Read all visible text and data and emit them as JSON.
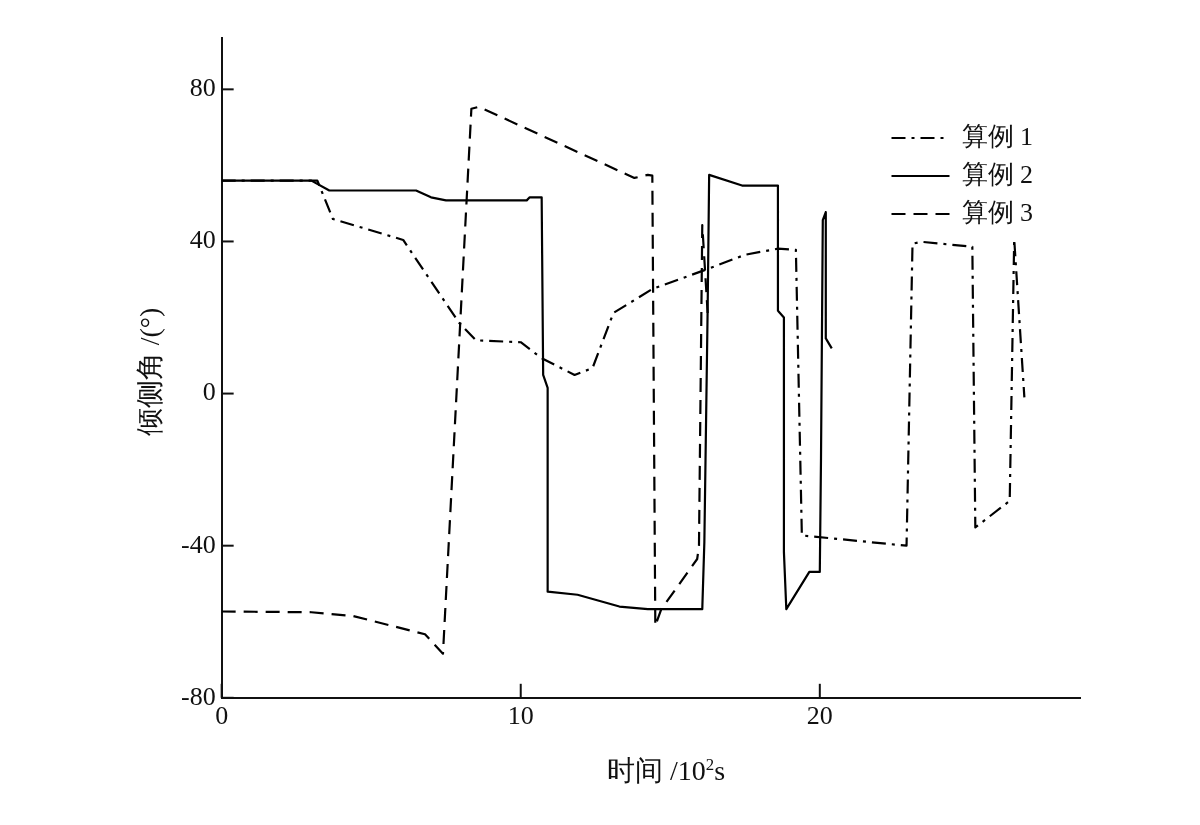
{
  "chart_data": {
    "type": "line",
    "xlabel": "时间 /10$^{2}$s",
    "ylabel": "倾侧角 /(°)",
    "xlim": [
      0,
      28.7
    ],
    "ylim": [
      -80,
      93.5
    ],
    "xticks": [
      0,
      10,
      20
    ],
    "yticks": [
      -80,
      -40,
      0,
      40,
      80
    ],
    "grid": false,
    "legend": "top right",
    "marker": "none",
    "series": [
      {
        "name": "算例 1",
        "color": "#000000",
        "line_style": "dashdot",
        "x": [
          0,
          3.2,
          3.72,
          6.07,
          7.93,
          8.5,
          10.0,
          10.7,
          11.8,
          12.4,
          13.1,
          14.4,
          16.2,
          17.5,
          18.6,
          19.2,
          19.4,
          22.9,
          23.1,
          23.4,
          25.1,
          25.2,
          26.35,
          26.5,
          26.84
        ],
        "values": [
          56,
          56,
          45.9,
          40.4,
          18.7,
          14,
          13.5,
          9.3,
          4.9,
          6.7,
          21.2,
          27.5,
          32.6,
          36.5,
          38.1,
          37.8,
          -37.3,
          -40,
          39.4,
          39.9,
          38.6,
          -35.2,
          -28.2,
          40.6,
          -1
        ]
      },
      {
        "name": "算例 2",
        "color": "#000000",
        "line_style": "solid",
        "x": [
          0,
          3.0,
          3.6,
          6.5,
          7.0,
          7.5,
          10.2,
          10.3,
          10.7,
          10.75,
          10.9,
          10.9,
          11.9,
          13.3,
          14.25,
          16.07,
          16.14,
          16.25,
          16.3,
          17.4,
          18.6,
          18.6,
          18.8,
          18.8,
          18.88,
          19.65,
          20.0,
          20.04,
          20.1,
          20.2,
          20.2,
          20.4
        ],
        "values": [
          56,
          56,
          53.4,
          53.4,
          51.6,
          50.8,
          50.8,
          51.6,
          51.6,
          4.9,
          1.5,
          -52.1,
          -52.9,
          -56,
          -56.7,
          -56.7,
          -39,
          22.3,
          57.5,
          54.7,
          54.7,
          21.8,
          20,
          -41.7,
          -56.7,
          -46.9,
          -46.9,
          -17,
          45.6,
          47.7,
          14.5,
          11.9
        ]
      },
      {
        "name": "算例 3",
        "color": "#000000",
        "line_style": "dashed",
        "x": [
          0,
          3,
          4.4,
          6.8,
          7.4,
          8.35,
          8.6,
          13.8,
          14.25,
          14.4,
          14.5,
          14.7,
          15.9,
          15.96,
          16.07,
          16.25
        ],
        "values": [
          -57.3,
          -57.5,
          -58.5,
          -63.3,
          -68.4,
          74.9,
          75.4,
          56.7,
          57.5,
          57.3,
          -61.1,
          -56.7,
          -43.5,
          -40,
          44.3,
          21.2
        ]
      }
    ]
  }
}
